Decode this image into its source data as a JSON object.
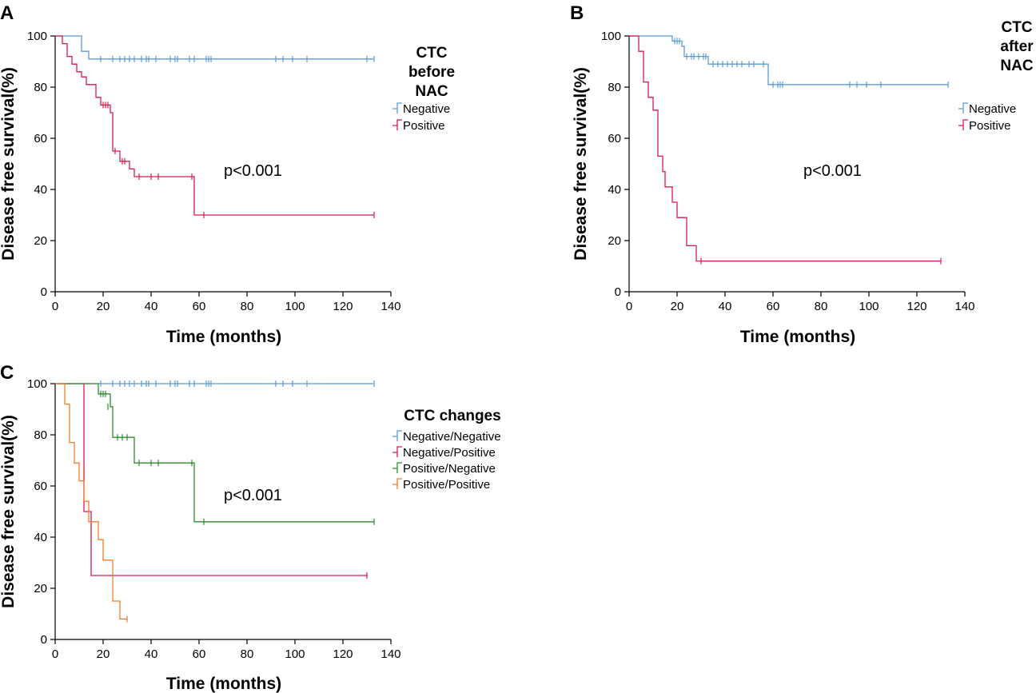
{
  "colors": {
    "negative": "#5b9bd5",
    "positive": "#d81b4c",
    "negneg": "#5b9bd5",
    "negpos": "#d81b4c",
    "posneg": "#2e8b2e",
    "pospos": "#f07c2a"
  },
  "chart_data": [
    {
      "type": "line",
      "panel": "A",
      "xlabel": "Time (months)",
      "ylabel": "Disease free survival(%)",
      "xlim": [
        0,
        140
      ],
      "ylim": [
        0,
        100
      ],
      "xticks": [
        0,
        20,
        40,
        60,
        80,
        100,
        120,
        140
      ],
      "yticks": [
        0,
        20,
        40,
        60,
        80,
        100
      ],
      "legend_title": "CTC before NAC",
      "legend_title_lines": [
        "CTC",
        "before",
        "NAC"
      ],
      "annotation": "p<0.001",
      "series": [
        {
          "name": "Negative",
          "color_key": "negative",
          "steps": [
            [
              0,
              100
            ],
            [
              11,
              94
            ],
            [
              14,
              91
            ],
            [
              133,
              91
            ]
          ],
          "censored": [
            [
              19,
              91
            ],
            [
              24,
              91
            ],
            [
              27,
              91
            ],
            [
              29,
              91
            ],
            [
              31,
              91
            ],
            [
              33,
              91
            ],
            [
              36,
              91
            ],
            [
              38,
              91
            ],
            [
              39,
              91
            ],
            [
              42,
              91
            ],
            [
              48,
              91
            ],
            [
              50,
              91
            ],
            [
              51,
              91
            ],
            [
              56,
              91
            ],
            [
              58,
              91
            ],
            [
              63,
              91
            ],
            [
              64,
              91
            ],
            [
              65,
              91
            ],
            [
              92,
              91
            ],
            [
              95,
              91
            ],
            [
              99,
              91
            ],
            [
              105,
              91
            ],
            [
              130,
              91
            ],
            [
              133,
              91
            ]
          ]
        },
        {
          "name": "Positive",
          "color_key": "positive",
          "steps": [
            [
              0,
              100
            ],
            [
              3,
              97
            ],
            [
              5,
              92
            ],
            [
              7,
              89
            ],
            [
              9,
              86
            ],
            [
              11,
              84
            ],
            [
              13,
              81
            ],
            [
              17,
              76
            ],
            [
              19,
              73
            ],
            [
              23,
              70
            ],
            [
              24,
              55
            ],
            [
              27,
              51
            ],
            [
              31,
              48
            ],
            [
              33,
              45
            ],
            [
              58,
              30
            ],
            [
              133,
              30
            ]
          ],
          "censored": [
            [
              20,
              73
            ],
            [
              21,
              73
            ],
            [
              22,
              73
            ],
            [
              25,
              55
            ],
            [
              28,
              51
            ],
            [
              29,
              51
            ],
            [
              35,
              45
            ],
            [
              40,
              45
            ],
            [
              43,
              45
            ],
            [
              57,
              45
            ],
            [
              62,
              30
            ],
            [
              133,
              30
            ]
          ]
        }
      ]
    },
    {
      "type": "line",
      "panel": "B",
      "xlabel": "Time (months)",
      "ylabel": "Disease free survival(%)",
      "xlim": [
        0,
        140
      ],
      "ylim": [
        0,
        100
      ],
      "xticks": [
        0,
        20,
        40,
        60,
        80,
        100,
        120,
        140
      ],
      "yticks": [
        0,
        20,
        40,
        60,
        80,
        100
      ],
      "legend_title": "CTC after NAC",
      "legend_title_lines": [
        "CTC",
        "after",
        "NAC"
      ],
      "annotation": "p<0.001",
      "series": [
        {
          "name": "Negative",
          "color_key": "negative",
          "steps": [
            [
              0,
              100
            ],
            [
              18,
              98
            ],
            [
              22,
              96
            ],
            [
              23,
              92
            ],
            [
              33,
              89
            ],
            [
              58,
              81
            ],
            [
              133,
              81
            ]
          ],
          "censored": [
            [
              19,
              98
            ],
            [
              20,
              98
            ],
            [
              21,
              98
            ],
            [
              24,
              92
            ],
            [
              26,
              92
            ],
            [
              27,
              92
            ],
            [
              29,
              92
            ],
            [
              31,
              92
            ],
            [
              32,
              92
            ],
            [
              35,
              89
            ],
            [
              37,
              89
            ],
            [
              39,
              89
            ],
            [
              41,
              89
            ],
            [
              43,
              89
            ],
            [
              45,
              89
            ],
            [
              47,
              89
            ],
            [
              50,
              89
            ],
            [
              52,
              89
            ],
            [
              56,
              89
            ],
            [
              60,
              81
            ],
            [
              62,
              81
            ],
            [
              63,
              81
            ],
            [
              64,
              81
            ],
            [
              92,
              81
            ],
            [
              95,
              81
            ],
            [
              99,
              81
            ],
            [
              105,
              81
            ],
            [
              133,
              81
            ]
          ]
        },
        {
          "name": "Positive",
          "color_key": "positive",
          "steps": [
            [
              0,
              100
            ],
            [
              4,
              94
            ],
            [
              6,
              82
            ],
            [
              8,
              76
            ],
            [
              10,
              71
            ],
            [
              12,
              53
            ],
            [
              14,
              47
            ],
            [
              15,
              41
            ],
            [
              18,
              35
            ],
            [
              20,
              29
            ],
            [
              24,
              18
            ],
            [
              28,
              12
            ],
            [
              130,
              12
            ]
          ],
          "censored": [
            [
              30,
              12
            ],
            [
              130,
              12
            ]
          ]
        }
      ]
    },
    {
      "type": "line",
      "panel": "C",
      "xlabel": "Time (months)",
      "ylabel": "Disease free survival(%)",
      "xlim": [
        0,
        140
      ],
      "ylim": [
        0,
        100
      ],
      "xticks": [
        0,
        20,
        40,
        60,
        80,
        100,
        120,
        140
      ],
      "yticks": [
        0,
        20,
        40,
        60,
        80,
        100
      ],
      "legend_title": "CTC changes",
      "legend_title_lines": [
        "CTC changes"
      ],
      "annotation": "p<0.001",
      "series": [
        {
          "name": "Negative/Negative",
          "color_key": "negneg",
          "steps": [
            [
              0,
              100
            ],
            [
              133,
              100
            ]
          ],
          "censored": [
            [
              19,
              100
            ],
            [
              24,
              100
            ],
            [
              27,
              100
            ],
            [
              29,
              100
            ],
            [
              31,
              100
            ],
            [
              33,
              100
            ],
            [
              36,
              100
            ],
            [
              38,
              100
            ],
            [
              39,
              100
            ],
            [
              42,
              100
            ],
            [
              48,
              100
            ],
            [
              50,
              100
            ],
            [
              51,
              100
            ],
            [
              56,
              100
            ],
            [
              58,
              100
            ],
            [
              63,
              100
            ],
            [
              64,
              100
            ],
            [
              65,
              100
            ],
            [
              92,
              100
            ],
            [
              95,
              100
            ],
            [
              99,
              100
            ],
            [
              105,
              100
            ],
            [
              133,
              100
            ]
          ]
        },
        {
          "name": "Negative/Positive",
          "color_key": "negpos",
          "steps": [
            [
              0,
              100
            ],
            [
              12,
              50
            ],
            [
              15,
              25
            ],
            [
              130,
              25
            ]
          ],
          "censored": [
            [
              130,
              25
            ]
          ]
        },
        {
          "name": "Positive/Negative",
          "color_key": "posneg",
          "steps": [
            [
              0,
              100
            ],
            [
              18,
              96
            ],
            [
              23,
              91
            ],
            [
              24,
              79
            ],
            [
              33,
              69
            ],
            [
              58,
              46
            ],
            [
              133,
              46
            ]
          ],
          "censored": [
            [
              19,
              96
            ],
            [
              20,
              96
            ],
            [
              21,
              96
            ],
            [
              22,
              91
            ],
            [
              26,
              79
            ],
            [
              28,
              79
            ],
            [
              30,
              79
            ],
            [
              35,
              69
            ],
            [
              40,
              69
            ],
            [
              43,
              69
            ],
            [
              57,
              69
            ],
            [
              62,
              46
            ],
            [
              133,
              46
            ]
          ]
        },
        {
          "name": "Positive/Positive",
          "color_key": "pospos",
          "steps": [
            [
              0,
              100
            ],
            [
              4,
              92
            ],
            [
              6,
              77
            ],
            [
              8,
              69
            ],
            [
              10,
              62
            ],
            [
              12,
              54
            ],
            [
              14,
              46
            ],
            [
              18,
              39
            ],
            [
              20,
              31
            ],
            [
              24,
              15
            ],
            [
              27,
              8
            ],
            [
              30,
              8
            ]
          ],
          "censored": [
            [
              30,
              8
            ]
          ]
        }
      ]
    }
  ]
}
